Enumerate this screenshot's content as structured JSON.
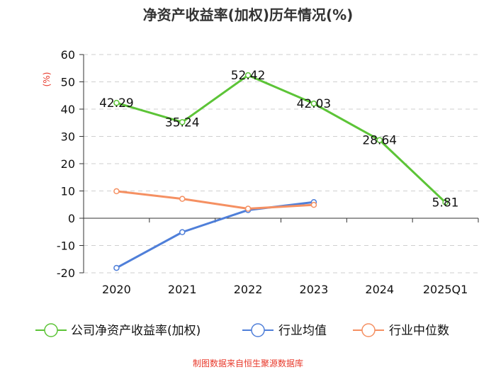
{
  "chart_data": {
    "type": "line",
    "title": "净资产收益率(加权)历年情况(%)",
    "ylabel": "(%)",
    "xlabel": "",
    "categories": [
      "2020",
      "2021",
      "2022",
      "2023",
      "2024",
      "2025Q1"
    ],
    "yticks": [
      60,
      50,
      40,
      30,
      20,
      10,
      0,
      -10,
      -20
    ],
    "ylim": [
      -20,
      60
    ],
    "grid": "horizontal-dashed",
    "legend_position": "bottom",
    "series": [
      {
        "name": "公司净资产收益率(加权)",
        "color": "#5cc437",
        "labeled": true,
        "values": [
          42.29,
          35.24,
          52.42,
          42.03,
          28.64,
          5.81
        ],
        "labels": [
          "42.29",
          "35.24",
          "52.42",
          "42.03",
          "28.64",
          "5.81"
        ]
      },
      {
        "name": "行业均值",
        "color": "#4f7fd9",
        "labeled": false,
        "values": [
          -18.2,
          -5.1,
          3.0,
          5.9,
          null,
          null
        ]
      },
      {
        "name": "行业中位数",
        "color": "#f59062",
        "labeled": false,
        "values": [
          9.9,
          7.1,
          3.5,
          4.9,
          null,
          null
        ]
      }
    ]
  },
  "source": "制图数据来自恒生聚源数据库"
}
